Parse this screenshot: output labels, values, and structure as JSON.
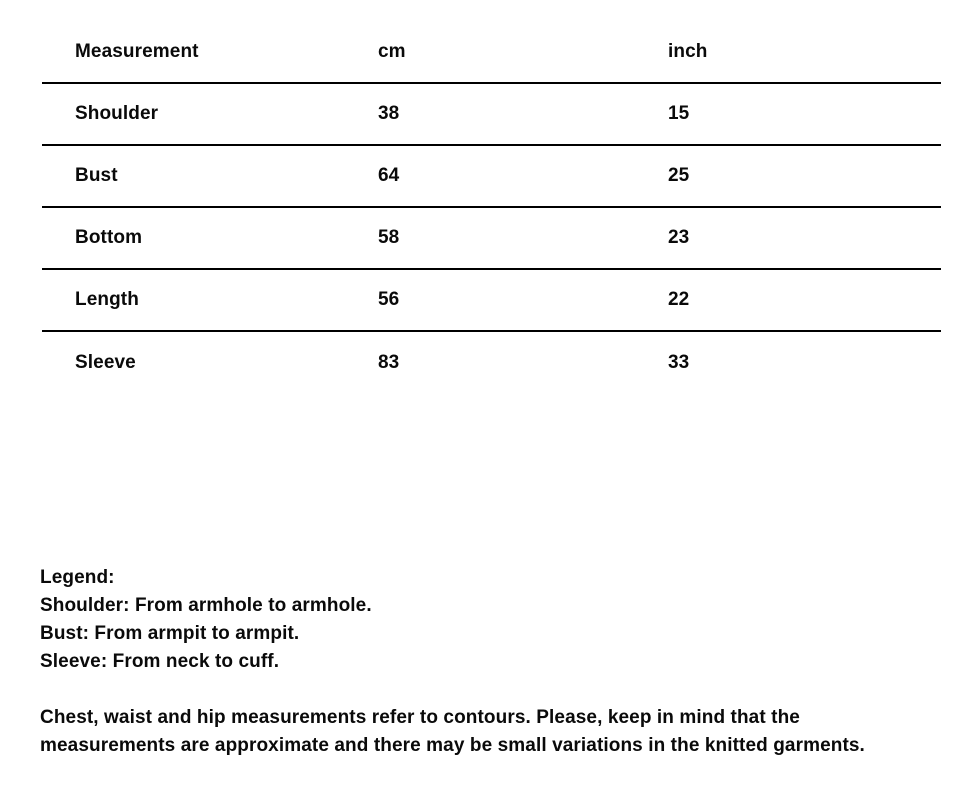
{
  "table": {
    "headers": [
      "Measurement",
      "cm",
      "inch"
    ],
    "rows": [
      {
        "measurement": "Shoulder",
        "cm": "38",
        "inch": "15"
      },
      {
        "measurement": "Bust",
        "cm": "64",
        "inch": "25"
      },
      {
        "measurement": "Bottom",
        "cm": "58",
        "inch": "23"
      },
      {
        "measurement": "Length",
        "cm": "56",
        "inch": "22"
      },
      {
        "measurement": "Sleeve",
        "cm": "83",
        "inch": "33"
      }
    ]
  },
  "legend": {
    "title": "Legend:",
    "items": [
      "Shoulder: From armhole to armhole.",
      "Bust: From armpit to armpit.",
      "Sleeve: From neck to cuff."
    ],
    "note": "Chest, waist and hip measurements refer to contours. Please, keep in mind that the measurements are approximate and there may be small variations in the knitted garments."
  },
  "colors": {
    "background": "#ffffff",
    "text": "#0a0a0a",
    "rule": "#000000"
  }
}
